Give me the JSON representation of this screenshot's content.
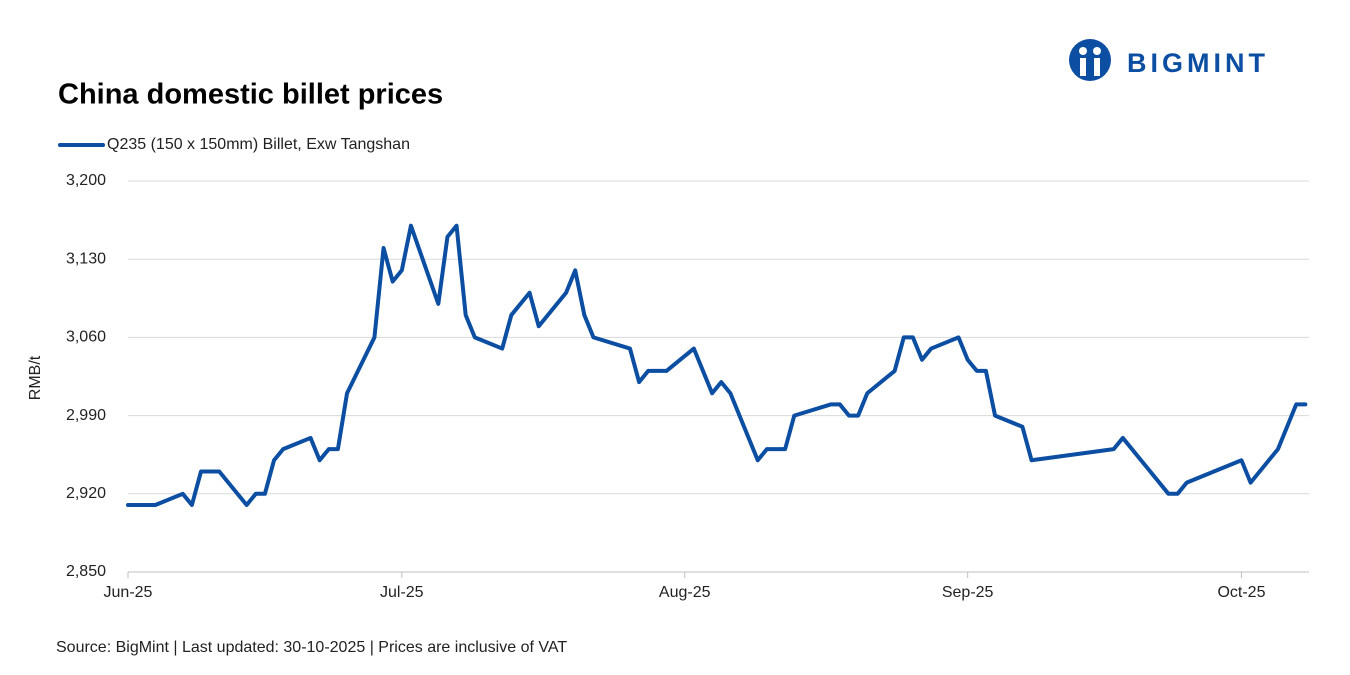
{
  "brand": "BIGMINT",
  "chart_data": {
    "type": "line",
    "title": "China domestic billet prices",
    "y_label": "RMB/t",
    "footer": "Source: BigMint | Last updated: 30-10-2025 | Prices are inclusive of VAT",
    "x": [
      0,
      3,
      6,
      7,
      8,
      10,
      13,
      14,
      15,
      16,
      17,
      20,
      21,
      22,
      23,
      24,
      27,
      28,
      29,
      30,
      31,
      34,
      35,
      36,
      37,
      38,
      41,
      42,
      44,
      45,
      48,
      49,
      50,
      51,
      55,
      56,
      57,
      59,
      62,
      64,
      65,
      66,
      69,
      70,
      72,
      73,
      77,
      78,
      79,
      80,
      81,
      84,
      85,
      86,
      87,
      88,
      91,
      92,
      93,
      94,
      95,
      98,
      99,
      108,
      109,
      114,
      115,
      116,
      122,
      123,
      126,
      128,
      129
    ],
    "series": [
      {
        "name": "Q235 (150 x 150mm) Billet, Exw Tangshan",
        "color": "#0b4ea2",
        "values": [
          2910,
          2910,
          2920,
          2910,
          2940,
          2940,
          2910,
          2920,
          2920,
          2950,
          2960,
          2970,
          2950,
          2960,
          2960,
          3010,
          3060,
          3140,
          3110,
          3120,
          3160,
          3090,
          3150,
          3160,
          3080,
          3060,
          3050,
          3080,
          3100,
          3070,
          3100,
          3120,
          3080,
          3060,
          3050,
          3020,
          3030,
          3030,
          3050,
          3010,
          3020,
          3010,
          2950,
          2960,
          2960,
          2990,
          3000,
          3000,
          2990,
          2990,
          3010,
          3030,
          3060,
          3060,
          3040,
          3050,
          3060,
          3040,
          3030,
          3030,
          2990,
          2980,
          2950,
          2960,
          2970,
          2920,
          2920,
          2930,
          2950,
          2930,
          2960,
          3000,
          3000
        ]
      }
    ],
    "xlim": [
      0,
      129.4
    ],
    "xticks": [
      {
        "value": 0,
        "label": "Jun-25"
      },
      {
        "value": 30,
        "label": "Jul-25"
      },
      {
        "value": 61,
        "label": "Aug-25"
      },
      {
        "value": 92,
        "label": "Sep-25"
      },
      {
        "value": 122,
        "label": "Oct-25"
      }
    ],
    "ylim": [
      2850,
      3200
    ],
    "yticks": [
      {
        "value": 2850,
        "label": "2,850"
      },
      {
        "value": 2920,
        "label": "2,920"
      },
      {
        "value": 2990,
        "label": "2,990"
      },
      {
        "value": 3060,
        "label": "3,060"
      },
      {
        "value": 3130,
        "label": "3,130"
      },
      {
        "value": 3200,
        "label": "3,200"
      }
    ],
    "grid": true
  }
}
